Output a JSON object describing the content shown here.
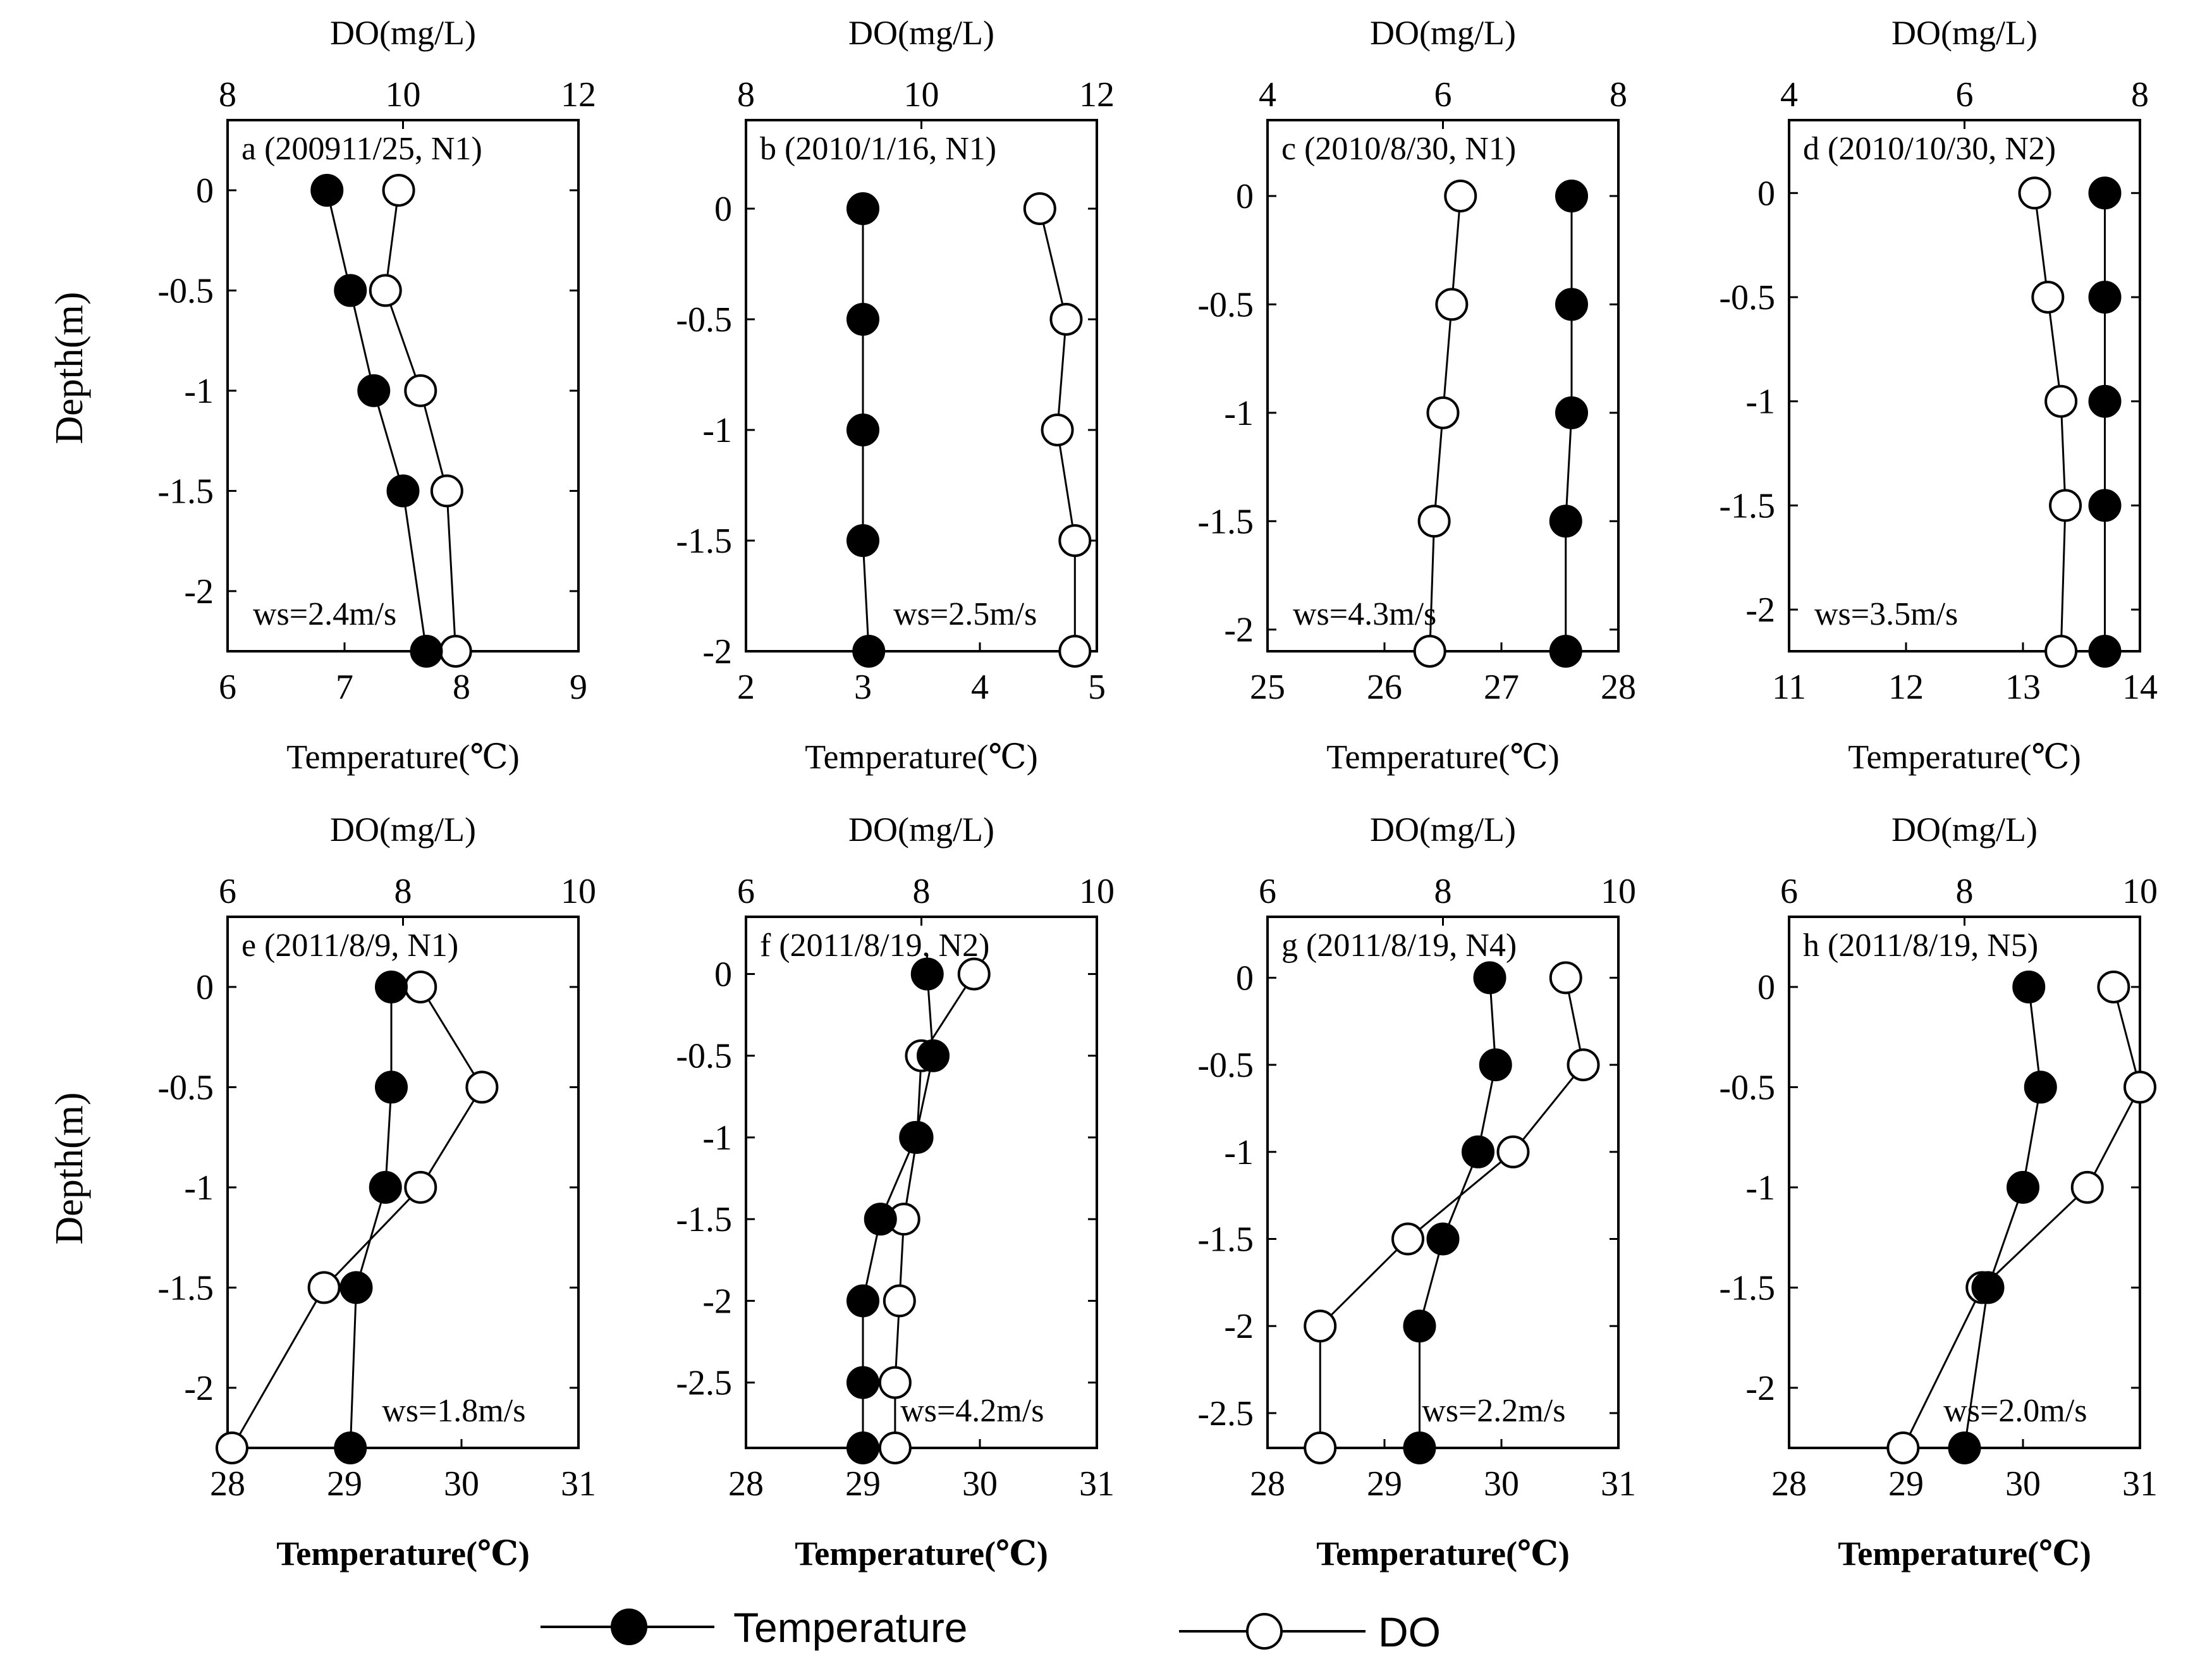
{
  "colors": {
    "temperature_marker": "#000000",
    "do_marker": "#ffffff",
    "line": "#000000"
  },
  "shared": {
    "ylabel": "Depth(m)",
    "top_axis_label": "DO(mg/L)",
    "bottom_axis_label": "Temperature(℃)"
  },
  "legend": {
    "temperature_label": "Temperature",
    "do_label": "DO",
    "temperature_icon": "filled-circle-marker",
    "do_icon": "open-circle-marker"
  },
  "chart_data": [
    {
      "type": "line",
      "panel_label": "a (200911/25, N1)",
      "wind": "ws=2.4m/s",
      "xlabel": "Temperature(℃)",
      "x2label": "DO(mg/L)",
      "ylabel": "Depth(m)",
      "xlim": [
        6,
        9
      ],
      "xticks": [
        6,
        7,
        8,
        9
      ],
      "x2lim": [
        8,
        12
      ],
      "x2ticks": [
        8,
        10,
        12
      ],
      "ylim": [
        -2.3,
        0.35
      ],
      "yticks": [
        0,
        -0.5,
        -1,
        -1.5,
        -2
      ],
      "depth": [
        0,
        -0.5,
        -1,
        -1.5,
        -2.3
      ],
      "series": [
        {
          "name": "Temperature",
          "values": [
            6.85,
            7.05,
            7.25,
            7.5,
            7.7
          ]
        },
        {
          "name": "DO",
          "values": [
            9.95,
            9.8,
            10.2,
            10.5,
            10.6
          ]
        }
      ]
    },
    {
      "type": "line",
      "panel_label": "b (2010/1/16, N1)",
      "wind": "ws=2.5m/s",
      "xlabel": "Temperature(℃)",
      "x2label": "DO(mg/L)",
      "ylabel": "Depth(m)",
      "xlim": [
        2,
        5
      ],
      "xticks": [
        2,
        3,
        4,
        5
      ],
      "x2lim": [
        8,
        12
      ],
      "x2ticks": [
        8,
        10,
        12
      ],
      "ylim": [
        -2.0,
        0.4
      ],
      "yticks": [
        0,
        -0.5,
        -1,
        -1.5,
        -2
      ],
      "depth": [
        0,
        -0.5,
        -1,
        -1.5,
        -2
      ],
      "series": [
        {
          "name": "Temperature",
          "values": [
            3.0,
            3.0,
            3.0,
            3.0,
            3.05
          ]
        },
        {
          "name": "DO",
          "values": [
            11.35,
            11.65,
            11.55,
            11.75,
            11.75
          ]
        }
      ]
    },
    {
      "type": "line",
      "panel_label": "c (2010/8/30, N1)",
      "wind": "ws=4.3m/s",
      "xlabel": "Temperature(℃)",
      "x2label": "DO(mg/L)",
      "ylabel": "Depth(m)",
      "xlim": [
        25,
        28
      ],
      "xticks": [
        25,
        26,
        27,
        28
      ],
      "x2lim": [
        4,
        8
      ],
      "x2ticks": [
        4,
        6,
        8
      ],
      "ylim": [
        -2.1,
        0.35
      ],
      "yticks": [
        0,
        -0.5,
        -1,
        -1.5,
        -2
      ],
      "depth": [
        0,
        -0.5,
        -1,
        -1.5,
        -2.1
      ],
      "series": [
        {
          "name": "Temperature",
          "values": [
            27.6,
            27.6,
            27.6,
            27.55,
            27.55
          ]
        },
        {
          "name": "DO",
          "values": [
            6.2,
            6.1,
            6.0,
            5.9,
            5.85
          ]
        }
      ]
    },
    {
      "type": "line",
      "panel_label": "d (2010/10/30, N2)",
      "wind": "ws=3.5m/s",
      "xlabel": "Temperature(℃)",
      "x2label": "DO(mg/L)",
      "ylabel": "Depth(m)",
      "xlim": [
        11,
        14
      ],
      "xticks": [
        11,
        12,
        13,
        14
      ],
      "x2lim": [
        4,
        8
      ],
      "x2ticks": [
        4,
        6,
        8
      ],
      "ylim": [
        -2.2,
        0.35
      ],
      "yticks": [
        0,
        -0.5,
        -1,
        -1.5,
        -2
      ],
      "depth": [
        0,
        -0.5,
        -1,
        -1.5,
        -2.2
      ],
      "series": [
        {
          "name": "Temperature",
          "values": [
            13.7,
            13.7,
            13.7,
            13.7,
            13.7
          ]
        },
        {
          "name": "DO",
          "values": [
            6.8,
            6.95,
            7.1,
            7.15,
            7.1
          ]
        }
      ]
    },
    {
      "type": "line",
      "panel_label": "e (2011/8/9, N1)",
      "wind": "ws=1.8m/s",
      "xlabel": "Temperature(℃)",
      "x2label": "DO(mg/L)",
      "ylabel": "Depth(m)",
      "xlim": [
        28,
        31
      ],
      "xticks": [
        28,
        29,
        30,
        31
      ],
      "x2lim": [
        6,
        10
      ],
      "x2ticks": [
        6,
        8,
        10
      ],
      "ylim": [
        -2.3,
        0.35
      ],
      "yticks": [
        0,
        -0.5,
        -1,
        -1.5,
        -2
      ],
      "depth": [
        0,
        -0.5,
        -1,
        -1.5,
        -2.3
      ],
      "series": [
        {
          "name": "Temperature",
          "values": [
            29.4,
            29.4,
            29.35,
            29.1,
            29.05
          ]
        },
        {
          "name": "DO",
          "values": [
            8.2,
            8.9,
            8.2,
            7.1,
            6.05
          ]
        }
      ]
    },
    {
      "type": "line",
      "panel_label": "f (2011/8/19, N2)",
      "wind": "ws=4.2m/s",
      "xlabel": "Temperature(℃)",
      "x2label": "DO(mg/L)",
      "ylabel": "Depth(m)",
      "xlim": [
        28,
        31
      ],
      "xticks": [
        28,
        29,
        30,
        31
      ],
      "x2lim": [
        6,
        10
      ],
      "x2ticks": [
        6,
        8,
        10
      ],
      "ylim": [
        -2.9,
        0.35
      ],
      "yticks": [
        0,
        -0.5,
        -1,
        -1.5,
        -2,
        -2.5
      ],
      "depth": [
        0,
        -0.5,
        -1,
        -1.5,
        -2,
        -2.5,
        -2.9
      ],
      "series": [
        {
          "name": "Temperature",
          "values": [
            29.55,
            29.6,
            29.45,
            29.15,
            29.0,
            29.0,
            29.0
          ]
        },
        {
          "name": "DO",
          "values": [
            8.6,
            8.0,
            7.95,
            7.8,
            7.75,
            7.7,
            7.7
          ]
        }
      ]
    },
    {
      "type": "line",
      "panel_label": "g (2011/8/19, N4)",
      "wind": "ws=2.2m/s",
      "xlabel": "Temperature(℃)",
      "x2label": "DO(mg/L)",
      "ylabel": "Depth(m)",
      "xlim": [
        28,
        31
      ],
      "xticks": [
        28,
        29,
        30,
        31
      ],
      "x2lim": [
        6,
        10
      ],
      "x2ticks": [
        6,
        8,
        10
      ],
      "ylim": [
        -2.7,
        0.35
      ],
      "yticks": [
        0,
        -0.5,
        -1,
        -1.5,
        -2,
        -2.5
      ],
      "depth": [
        0,
        -0.5,
        -1,
        -1.5,
        -2,
        -2.7
      ],
      "series": [
        {
          "name": "Temperature",
          "values": [
            29.9,
            29.95,
            29.8,
            29.5,
            29.3,
            29.3
          ]
        },
        {
          "name": "DO",
          "values": [
            9.4,
            9.6,
            8.8,
            7.6,
            6.6,
            6.6
          ]
        }
      ]
    },
    {
      "type": "line",
      "panel_label": "h (2011/8/19, N5)",
      "wind": "ws=2.0m/s",
      "xlabel": "Temperature(℃)",
      "x2label": "DO(mg/L)",
      "ylabel": "Depth(m)",
      "xlim": [
        28,
        31
      ],
      "xticks": [
        28,
        29,
        30,
        31
      ],
      "x2lim": [
        6,
        10
      ],
      "x2ticks": [
        6,
        8,
        10
      ],
      "ylim": [
        -2.3,
        0.35
      ],
      "yticks": [
        0,
        -0.5,
        -1,
        -1.5,
        -2
      ],
      "depth": [
        0,
        -0.5,
        -1,
        -1.5,
        -2.3
      ],
      "series": [
        {
          "name": "Temperature",
          "values": [
            30.05,
            30.15,
            30.0,
            29.7,
            29.5
          ]
        },
        {
          "name": "DO",
          "values": [
            9.7,
            10.0,
            9.4,
            8.2,
            7.3
          ]
        }
      ]
    }
  ]
}
